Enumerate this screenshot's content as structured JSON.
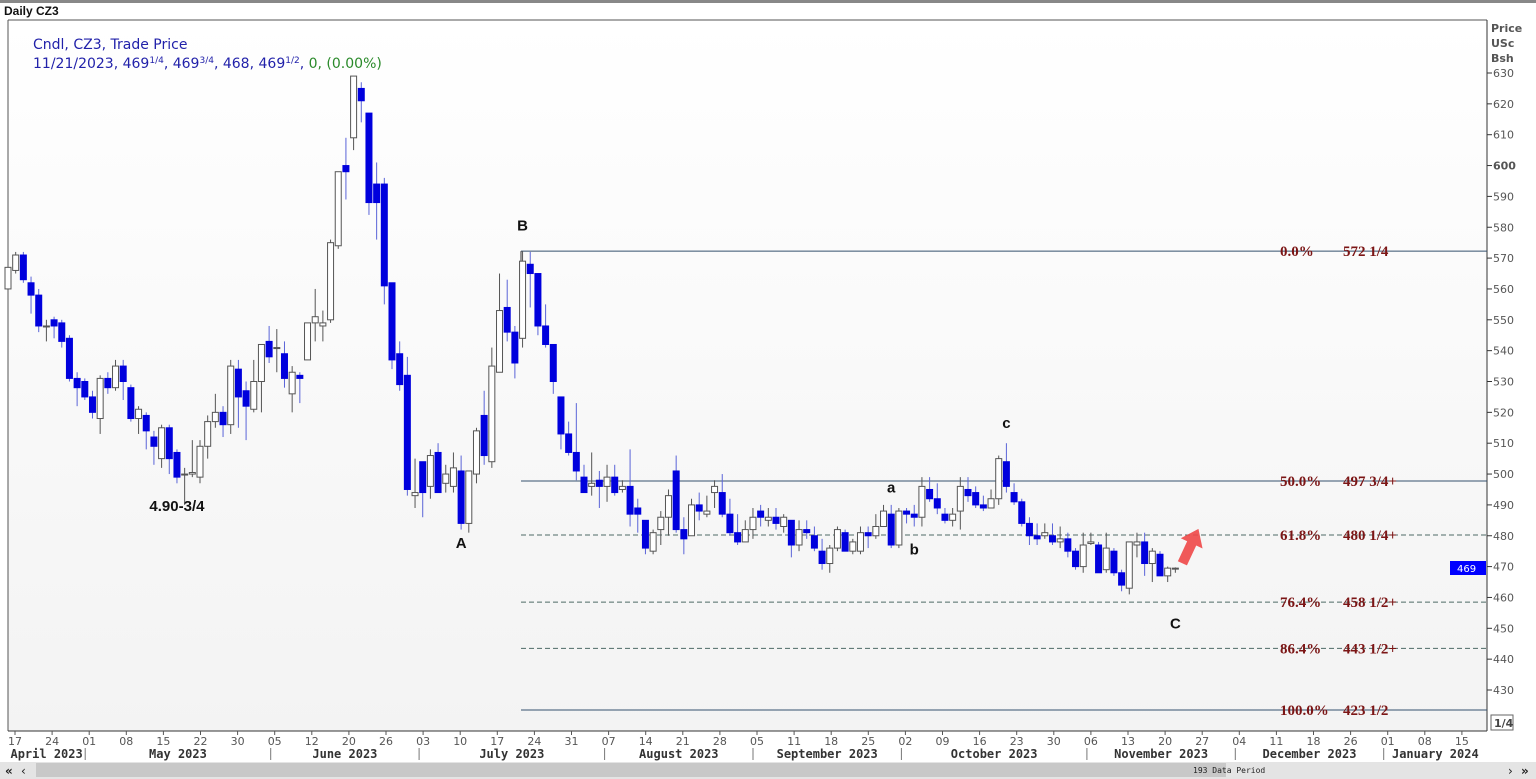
{
  "header": {
    "title": "Daily CZ3"
  },
  "legend": {
    "line1": "Cndl, CZ3, Trade Price",
    "date": "11/21/2023",
    "open": {
      "whole": "469",
      "frac": "1/4"
    },
    "high": {
      "whole": "469",
      "frac": "3/4"
    },
    "low": {
      "whole": "468",
      "frac": ""
    },
    "close": {
      "whole": "469",
      "frac": "1/2"
    },
    "change": "0, (0.00%)"
  },
  "axis": {
    "y_title": [
      "Price",
      "USc",
      "Bsh"
    ],
    "last_price_label": "469",
    "fraction_button": "1/4",
    "data_period": "193 Data Period"
  },
  "colors": {
    "up_fill": "#ffffff",
    "up_line": "#555555",
    "down_fill": "#0000dd",
    "down_wick": "#5a64d8",
    "fib_line": "#34506e",
    "fib_text": "#7b1515",
    "price_marker": "#0000ff",
    "arrow": "#f04848"
  },
  "chart_data": {
    "type": "candlestick",
    "title": "Daily CZ3",
    "ylabel": "Price USc Bsh",
    "ylim": [
      420,
      635
    ],
    "yticks": [
      430,
      440,
      450,
      460,
      470,
      480,
      490,
      500,
      510,
      520,
      530,
      540,
      550,
      560,
      570,
      580,
      590,
      600,
      610,
      620,
      630
    ],
    "x_day_ticks": [
      "17",
      "24",
      "01",
      "08",
      "15",
      "22",
      "30",
      "05",
      "12",
      "20",
      "26",
      "03",
      "10",
      "17",
      "24",
      "31",
      "07",
      "14",
      "21",
      "28",
      "05",
      "11",
      "18",
      "25",
      "02",
      "09",
      "16",
      "23",
      "30",
      "06",
      "13",
      "20",
      "27",
      "04",
      "11",
      "18",
      "26",
      "01",
      "08",
      "15"
    ],
    "x_months": [
      {
        "label": "April 2023",
        "ticks": 2
      },
      {
        "label": "May 2023",
        "ticks": 5
      },
      {
        "label": "June 2023",
        "ticks": 4
      },
      {
        "label": "July 2023",
        "ticks": 5
      },
      {
        "label": "August 2023",
        "ticks": 4
      },
      {
        "label": "September 2023",
        "ticks": 4
      },
      {
        "label": "October 2023",
        "ticks": 5
      },
      {
        "label": "November 2023",
        "ticks": 4
      },
      {
        "label": "December 2023",
        "ticks": 4
      },
      {
        "label": "January 2024",
        "ticks": 3
      }
    ],
    "ohlc_fields": [
      "open",
      "high",
      "low",
      "close"
    ],
    "last_candle_date": "11/21/2023",
    "candles": [
      [
        560,
        569,
        558,
        567
      ],
      [
        566,
        572,
        565,
        571
      ],
      [
        571,
        572,
        562,
        563
      ],
      [
        562,
        564,
        552,
        558
      ],
      [
        558,
        560,
        546,
        548
      ],
      [
        548,
        550,
        543,
        548
      ],
      [
        550,
        551,
        544,
        548
      ],
      [
        549,
        550,
        541,
        543
      ],
      [
        544,
        545,
        530,
        531
      ],
      [
        531,
        533,
        522,
        528
      ],
      [
        530,
        531,
        524,
        525
      ],
      [
        525,
        527,
        518,
        520
      ],
      [
        518,
        532,
        513,
        531
      ],
      [
        531,
        533,
        526,
        528
      ],
      [
        528,
        537,
        527,
        535
      ],
      [
        535,
        537,
        524,
        530
      ],
      [
        528,
        529,
        517,
        518
      ],
      [
        518,
        522,
        513,
        521
      ],
      [
        519,
        520,
        508,
        514
      ],
      [
        512,
        514,
        503,
        509
      ],
      [
        505,
        516,
        502,
        515
      ],
      [
        515,
        516,
        500,
        505
      ],
      [
        507,
        508,
        497,
        499
      ],
      [
        500,
        502,
        490,
        500
      ],
      [
        500,
        511,
        499,
        500.5
      ],
      [
        499,
        511,
        497,
        509
      ],
      [
        509,
        519,
        505,
        517
      ],
      [
        517,
        526,
        515,
        520
      ],
      [
        520,
        522,
        512,
        516
      ],
      [
        516,
        537,
        513,
        535
      ],
      [
        534,
        537,
        515,
        525
      ],
      [
        527,
        530,
        511,
        522
      ],
      [
        521,
        537,
        520,
        530
      ],
      [
        530,
        542,
        520,
        542
      ],
      [
        543,
        548,
        536,
        538
      ],
      [
        541,
        547,
        533,
        541
      ],
      [
        539,
        543,
        528,
        531
      ],
      [
        526,
        535,
        520,
        533
      ],
      [
        532,
        533,
        523,
        531
      ],
      [
        537,
        549,
        537,
        549
      ],
      [
        549,
        560,
        543,
        551
      ],
      [
        548,
        553,
        543,
        549
      ],
      [
        550,
        576,
        549,
        575
      ],
      [
        574,
        598,
        573,
        598
      ],
      [
        600,
        609,
        589,
        598
      ],
      [
        609,
        629,
        605,
        629
      ],
      [
        625,
        627,
        614,
        621
      ],
      [
        617,
        617,
        584,
        588
      ],
      [
        594,
        601,
        576,
        588
      ],
      [
        594,
        596,
        555,
        561
      ],
      [
        562,
        562,
        534,
        537
      ],
      [
        539,
        543,
        527,
        529
      ],
      [
        532,
        538,
        493,
        495
      ],
      [
        493,
        505,
        489,
        494
      ],
      [
        504,
        504,
        486,
        494
      ],
      [
        496,
        508,
        492,
        506
      ],
      [
        507,
        510,
        494,
        494
      ],
      [
        497,
        503,
        494,
        500
      ],
      [
        496,
        507,
        494,
        502
      ],
      [
        501,
        506,
        482,
        484
      ],
      [
        484,
        501,
        481,
        501
      ],
      [
        500,
        515,
        497,
        514
      ],
      [
        519,
        527,
        503,
        506
      ],
      [
        504,
        541,
        502,
        535
      ],
      [
        533,
        565,
        533,
        553
      ],
      [
        554,
        563,
        543,
        546
      ],
      [
        546,
        548,
        531,
        536
      ],
      [
        544,
        572.25,
        541,
        569
      ],
      [
        568,
        572,
        554,
        565
      ],
      [
        565,
        565,
        545,
        548
      ],
      [
        548,
        555,
        541,
        542
      ],
      [
        542,
        542,
        526,
        530
      ],
      [
        525,
        525,
        508,
        513
      ],
      [
        513,
        517,
        506,
        507
      ],
      [
        507,
        523,
        498,
        501
      ],
      [
        499,
        503,
        494,
        494
      ],
      [
        496,
        507,
        493,
        497
      ],
      [
        498,
        501,
        489,
        496
      ],
      [
        496,
        503,
        491,
        499
      ],
      [
        499,
        503,
        493,
        494
      ],
      [
        495,
        498,
        494,
        496
      ],
      [
        496,
        508,
        483,
        487
      ],
      [
        489,
        492,
        481,
        487
      ],
      [
        485,
        485,
        474,
        476
      ],
      [
        475,
        482,
        474,
        481
      ],
      [
        482,
        488,
        477,
        486
      ],
      [
        486,
        495,
        480,
        493
      ],
      [
        501,
        506,
        481,
        482
      ],
      [
        482,
        486,
        474,
        479
      ],
      [
        480,
        492,
        480,
        490
      ],
      [
        490,
        494,
        485,
        488
      ],
      [
        487,
        493,
        486,
        488
      ],
      [
        494,
        498,
        489,
        496
      ],
      [
        494,
        500,
        486,
        487
      ],
      [
        487,
        492,
        480,
        481
      ],
      [
        481,
        487,
        477,
        478
      ],
      [
        478,
        485,
        478,
        482
      ],
      [
        482,
        489,
        479,
        486
      ],
      [
        488,
        490,
        483,
        486
      ],
      [
        485,
        489,
        483,
        486
      ],
      [
        486,
        489,
        482,
        484
      ],
      [
        483,
        487,
        481,
        486
      ],
      [
        485,
        485,
        473,
        477
      ],
      [
        477,
        485,
        475,
        482
      ],
      [
        482,
        485,
        479,
        481
      ],
      [
        480,
        483,
        475,
        476
      ],
      [
        475,
        479,
        469,
        471
      ],
      [
        471,
        477,
        468,
        476
      ],
      [
        476,
        483,
        475,
        482
      ],
      [
        481,
        482,
        475,
        475
      ],
      [
        475,
        479,
        474,
        478
      ],
      [
        475,
        483,
        474,
        481
      ],
      [
        481,
        483,
        476,
        480
      ],
      [
        480,
        487,
        479,
        483
      ],
      [
        483,
        490,
        483,
        488
      ],
      [
        487,
        490,
        476,
        477
      ],
      [
        477,
        489,
        476,
        488
      ],
      [
        488,
        489,
        484,
        487
      ],
      [
        487,
        490,
        483,
        486
      ],
      [
        486,
        499,
        483,
        496
      ],
      [
        495,
        499,
        491,
        492
      ],
      [
        492,
        497,
        487,
        489
      ],
      [
        487,
        489,
        484,
        485
      ],
      [
        485,
        489,
        483,
        487
      ],
      [
        488,
        499,
        482,
        496
      ],
      [
        495,
        499,
        491,
        493
      ],
      [
        494,
        496,
        489,
        490
      ],
      [
        490,
        493,
        488,
        489
      ],
      [
        489,
        495,
        489,
        492
      ],
      [
        492,
        506,
        490,
        505
      ],
      [
        504,
        510,
        494,
        496
      ],
      [
        494,
        497,
        490,
        491
      ],
      [
        491,
        492,
        483,
        484
      ],
      [
        484,
        486,
        477,
        480
      ],
      [
        480,
        484,
        477,
        479
      ],
      [
        480,
        484,
        479,
        481
      ],
      [
        480,
        484,
        477,
        478
      ],
      [
        478,
        483,
        476,
        479
      ],
      [
        479,
        481,
        473,
        475
      ],
      [
        475,
        476,
        469,
        470
      ],
      [
        470,
        481,
        468,
        477
      ],
      [
        477.5,
        481,
        477,
        478
      ],
      [
        477,
        478,
        468,
        468
      ],
      [
        469,
        481,
        468,
        476
      ],
      [
        475,
        476,
        467,
        468
      ],
      [
        468,
        469,
        462,
        464
      ],
      [
        463,
        478,
        461,
        478
      ],
      [
        477,
        481,
        473,
        478
      ],
      [
        478,
        481,
        467,
        471
      ],
      [
        471,
        476,
        465,
        475
      ],
      [
        474,
        475,
        467,
        467
      ],
      [
        467,
        470,
        465,
        469.5
      ],
      [
        469.25,
        469.75,
        468,
        469.5
      ]
    ],
    "fib_levels": [
      {
        "pct": "0.0%",
        "value_label": "572 1/4",
        "value": 572.25,
        "style": "solid"
      },
      {
        "pct": "50.0%",
        "value_label": "497 3/4+",
        "value": 497.75,
        "style": "solid"
      },
      {
        "pct": "61.8%",
        "value_label": "480 1/4+",
        "value": 480.25,
        "style": "dashed"
      },
      {
        "pct": "76.4%",
        "value_label": "458 1/2+",
        "value": 458.5,
        "style": "dashed"
      },
      {
        "pct": "86.4%",
        "value_label": "443 1/2+",
        "value": 443.5,
        "style": "dashed"
      },
      {
        "pct": "100.0%",
        "value_label": "423 1/2",
        "value": 423.5,
        "style": "solid"
      }
    ],
    "annotations": [
      {
        "text": "4.90-3/4",
        "candle": 22,
        "price": 488
      },
      {
        "text": "A",
        "candle": 59,
        "price": 476
      },
      {
        "text": "B",
        "candle": 67,
        "price": 579
      },
      {
        "text": "a",
        "candle": 115,
        "price": 494
      },
      {
        "text": "b",
        "candle": 118,
        "price": 474
      },
      {
        "text": "c",
        "candle": 130,
        "price": 515
      },
      {
        "text": "C",
        "candle": 152,
        "price": 450
      }
    ],
    "arrow": {
      "direction": "up-right",
      "color": "#f04848"
    }
  }
}
